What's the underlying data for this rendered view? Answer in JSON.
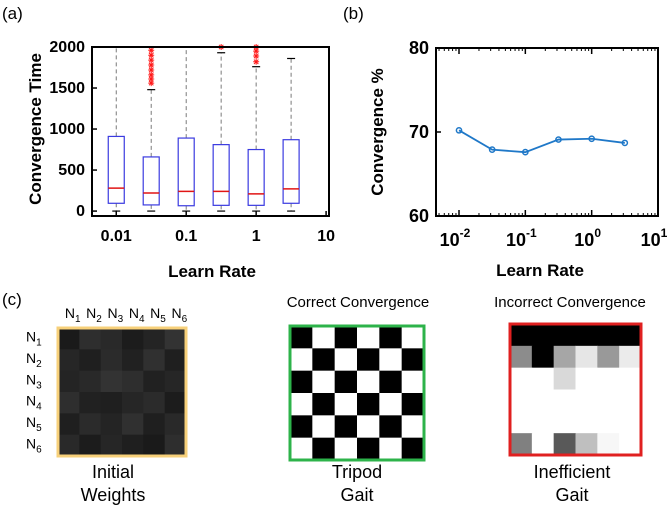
{
  "panels": {
    "a": "(a)",
    "b": "(b)",
    "c": "(c)"
  },
  "chart_data": [
    {
      "type": "box",
      "title": "",
      "xlabel": "Learn Rate",
      "ylabel": "Convergence Time",
      "xscale": "log",
      "xlim": [
        0.0045,
        11
      ],
      "ylim": [
        -60,
        2000
      ],
      "xticks": [
        0.01,
        0.1,
        1,
        10
      ],
      "xtick_labels": [
        "0.01",
        "0.1",
        "1",
        "10"
      ],
      "yticks": [
        0,
        500,
        1000,
        1500,
        2000
      ],
      "ytick_labels": [
        "0",
        "500",
        "1000",
        "1500",
        "2000"
      ],
      "colors": {
        "box": "#3a3ae0",
        "median": "#e01515",
        "outlier": "#ff1a1a",
        "whisker": "#7a7a7a",
        "cap": "#000000"
      },
      "boxes": [
        {
          "x": 0.01,
          "q1": 95,
          "median": 280,
          "q3": 910,
          "whisker_low": 0,
          "whisker_high": 2000,
          "outliers": []
        },
        {
          "x": 0.0316,
          "q1": 75,
          "median": 220,
          "q3": 660,
          "whisker_low": 0,
          "whisker_high": 1480,
          "outliers": [
            1560,
            1610,
            1660,
            1720,
            1780,
            1840,
            1900,
            1960
          ]
        },
        {
          "x": 0.1,
          "q1": 65,
          "median": 240,
          "q3": 890,
          "whisker_low": 0,
          "whisker_high": 2000,
          "outliers": []
        },
        {
          "x": 0.316,
          "q1": 70,
          "median": 240,
          "q3": 810,
          "whisker_low": 0,
          "whisker_high": 1930,
          "outliers": [
            2000
          ]
        },
        {
          "x": 1,
          "q1": 70,
          "median": 210,
          "q3": 750,
          "whisker_low": 0,
          "whisker_high": 1760,
          "outliers": [
            1820,
            1890,
            1950,
            2000
          ]
        },
        {
          "x": 3.16,
          "q1": 95,
          "median": 270,
          "q3": 870,
          "whisker_low": 0,
          "whisker_high": 1860,
          "outliers": []
        }
      ]
    },
    {
      "type": "line",
      "title": "",
      "xlabel": "Learn Rate",
      "ylabel": "Convergence %",
      "xscale": "log",
      "xlim": [
        0.0045,
        10
      ],
      "ylim": [
        60,
        80
      ],
      "xticks": [
        0.01,
        0.1,
        1,
        10
      ],
      "xtick_base": "10",
      "xtick_exponents": [
        "-2",
        "-1",
        "0",
        "1"
      ],
      "yticks": [
        60,
        70,
        80
      ],
      "ytick_labels": [
        "60",
        "70",
        "80"
      ],
      "color": "#1f78c8",
      "x": [
        0.01,
        0.0316,
        0.1,
        0.316,
        1,
        3.16
      ],
      "y": [
        70.2,
        67.9,
        67.6,
        69.1,
        69.2,
        68.7
      ]
    }
  ],
  "matrices": {
    "initial": {
      "caption_line1": "Initial",
      "caption_line2": "Weights",
      "border_color": "#f7d07a",
      "row_labels": [
        "N",
        "N",
        "N",
        "N",
        "N",
        "N"
      ],
      "col_labels": [
        "N",
        "N",
        "N",
        "N",
        "N",
        "N"
      ],
      "label_subs": [
        "1",
        "2",
        "3",
        "4",
        "5",
        "6"
      ],
      "values": [
        [
          0.1,
          0.18,
          0.16,
          0.11,
          0.14,
          0.2
        ],
        [
          0.15,
          0.12,
          0.17,
          0.13,
          0.19,
          0.12
        ],
        [
          0.14,
          0.16,
          0.2,
          0.18,
          0.13,
          0.15
        ],
        [
          0.18,
          0.13,
          0.12,
          0.15,
          0.17,
          0.11
        ],
        [
          0.12,
          0.17,
          0.14,
          0.19,
          0.12,
          0.16
        ],
        [
          0.16,
          0.11,
          0.15,
          0.12,
          0.1,
          0.18
        ]
      ]
    },
    "correct": {
      "title": "Correct Convergence",
      "caption_line1": "Tripod",
      "caption_line2": "Gait",
      "border_color": "#2db34a",
      "values": [
        [
          0,
          1,
          0,
          1,
          0,
          1
        ],
        [
          1,
          0,
          1,
          0,
          1,
          0
        ],
        [
          0,
          1,
          0,
          1,
          0,
          1
        ],
        [
          1,
          0,
          1,
          0,
          1,
          0
        ],
        [
          0,
          1,
          0,
          1,
          0,
          1
        ],
        [
          1,
          0,
          1,
          0,
          1,
          0
        ]
      ]
    },
    "incorrect": {
      "title": "Incorrect Convergence",
      "caption_line1": "Inefficient",
      "caption_line2": "Gait",
      "border_color": "#e02020",
      "values": [
        [
          0,
          0,
          0,
          0,
          0,
          0
        ],
        [
          0.55,
          0,
          0.65,
          0.9,
          0.6,
          0.92
        ],
        [
          1,
          1,
          0.85,
          1,
          1,
          1
        ],
        [
          1,
          1,
          1,
          1,
          1,
          1
        ],
        [
          1,
          1,
          1,
          1,
          1,
          1
        ],
        [
          0.5,
          1,
          0.35,
          0.75,
          0.97,
          1
        ]
      ]
    }
  }
}
